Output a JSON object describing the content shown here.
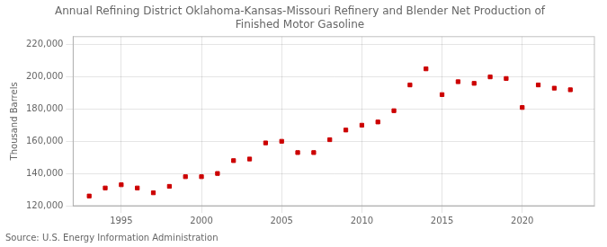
{
  "chart_data": {
    "type": "scatter",
    "title": "Annual Refining District Oklahoma-Kansas-Missouri Refinery and Blender Net Production of\nFinished Motor Gasoline",
    "ylabel": "Thousand Barrels",
    "annotation": "Source: U.S. Energy Information Administration",
    "x": [
      1993,
      1994,
      1995,
      1996,
      1997,
      1998,
      1999,
      2000,
      2001,
      2002,
      2003,
      2004,
      2005,
      2006,
      2007,
      2008,
      2009,
      2010,
      2011,
      2012,
      2013,
      2014,
      2015,
      2016,
      2017,
      2018,
      2019,
      2020,
      2021,
      2022,
      2023
    ],
    "values": [
      126000,
      131000,
      133000,
      131000,
      128000,
      132000,
      138000,
      138000,
      140000,
      148000,
      149000,
      159000,
      160000,
      153000,
      153000,
      161000,
      167000,
      170000,
      172000,
      179000,
      195000,
      205000,
      189000,
      197000,
      196000,
      200000,
      199000,
      181000,
      195000,
      193000,
      192000
    ],
    "color": "#cc0000",
    "marker": "square",
    "xlim": [
      1992.0,
      2024.5
    ],
    "xticks": [
      1995,
      2000,
      2005,
      2010,
      2015,
      2020
    ],
    "ylim": [
      120000,
      225000
    ],
    "yticks": [
      {
        "value": 120000,
        "label": "120,000"
      },
      {
        "value": 140000,
        "label": "140,000"
      },
      {
        "value": 160000,
        "label": "160,000"
      },
      {
        "value": 180000,
        "label": "180,000"
      },
      {
        "value": 200000,
        "label": "200,000"
      },
      {
        "value": 220000,
        "label": "220,000"
      }
    ],
    "grid": true
  }
}
